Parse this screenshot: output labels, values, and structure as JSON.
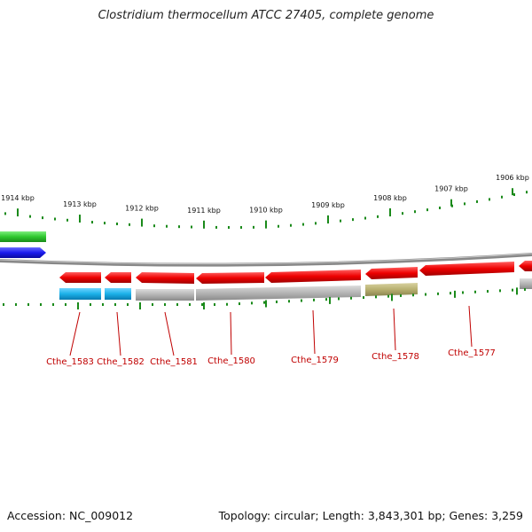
{
  "title": "Clostridium thermocellum ATCC 27405, complete genome",
  "footer": {
    "accession": "Accession: NC_009012",
    "summary": "Topology: circular; Length: 3,843,301 bp; Genes: 3,259"
  },
  "scale": {
    "kbp_ticks": [
      "1914 kbp",
      "1913 kbp",
      "1912 kbp",
      "1911 kbp",
      "1910 kbp",
      "1909 kbp",
      "1908 kbp",
      "1907 kbp",
      "1906 kbp"
    ]
  },
  "colors": {
    "gene_red": "#e80000",
    "gene_cyan": "#1ab0e8",
    "gene_gray": "#b4b4b4",
    "gene_olive": "#b8b070",
    "gene_green": "#2ec82e",
    "gene_blue": "#1a1aee",
    "tick_green": "#1a8a1a",
    "backbone": "#888888",
    "label_red": "#c00000"
  },
  "genes": [
    {
      "locus": "Cthe_1583"
    },
    {
      "locus": "Cthe_1582"
    },
    {
      "locus": "Cthe_1581"
    },
    {
      "locus": "Cthe_1580"
    },
    {
      "locus": "Cthe_1579"
    },
    {
      "locus": "Cthe_1578"
    },
    {
      "locus": "Cthe_1577"
    }
  ]
}
